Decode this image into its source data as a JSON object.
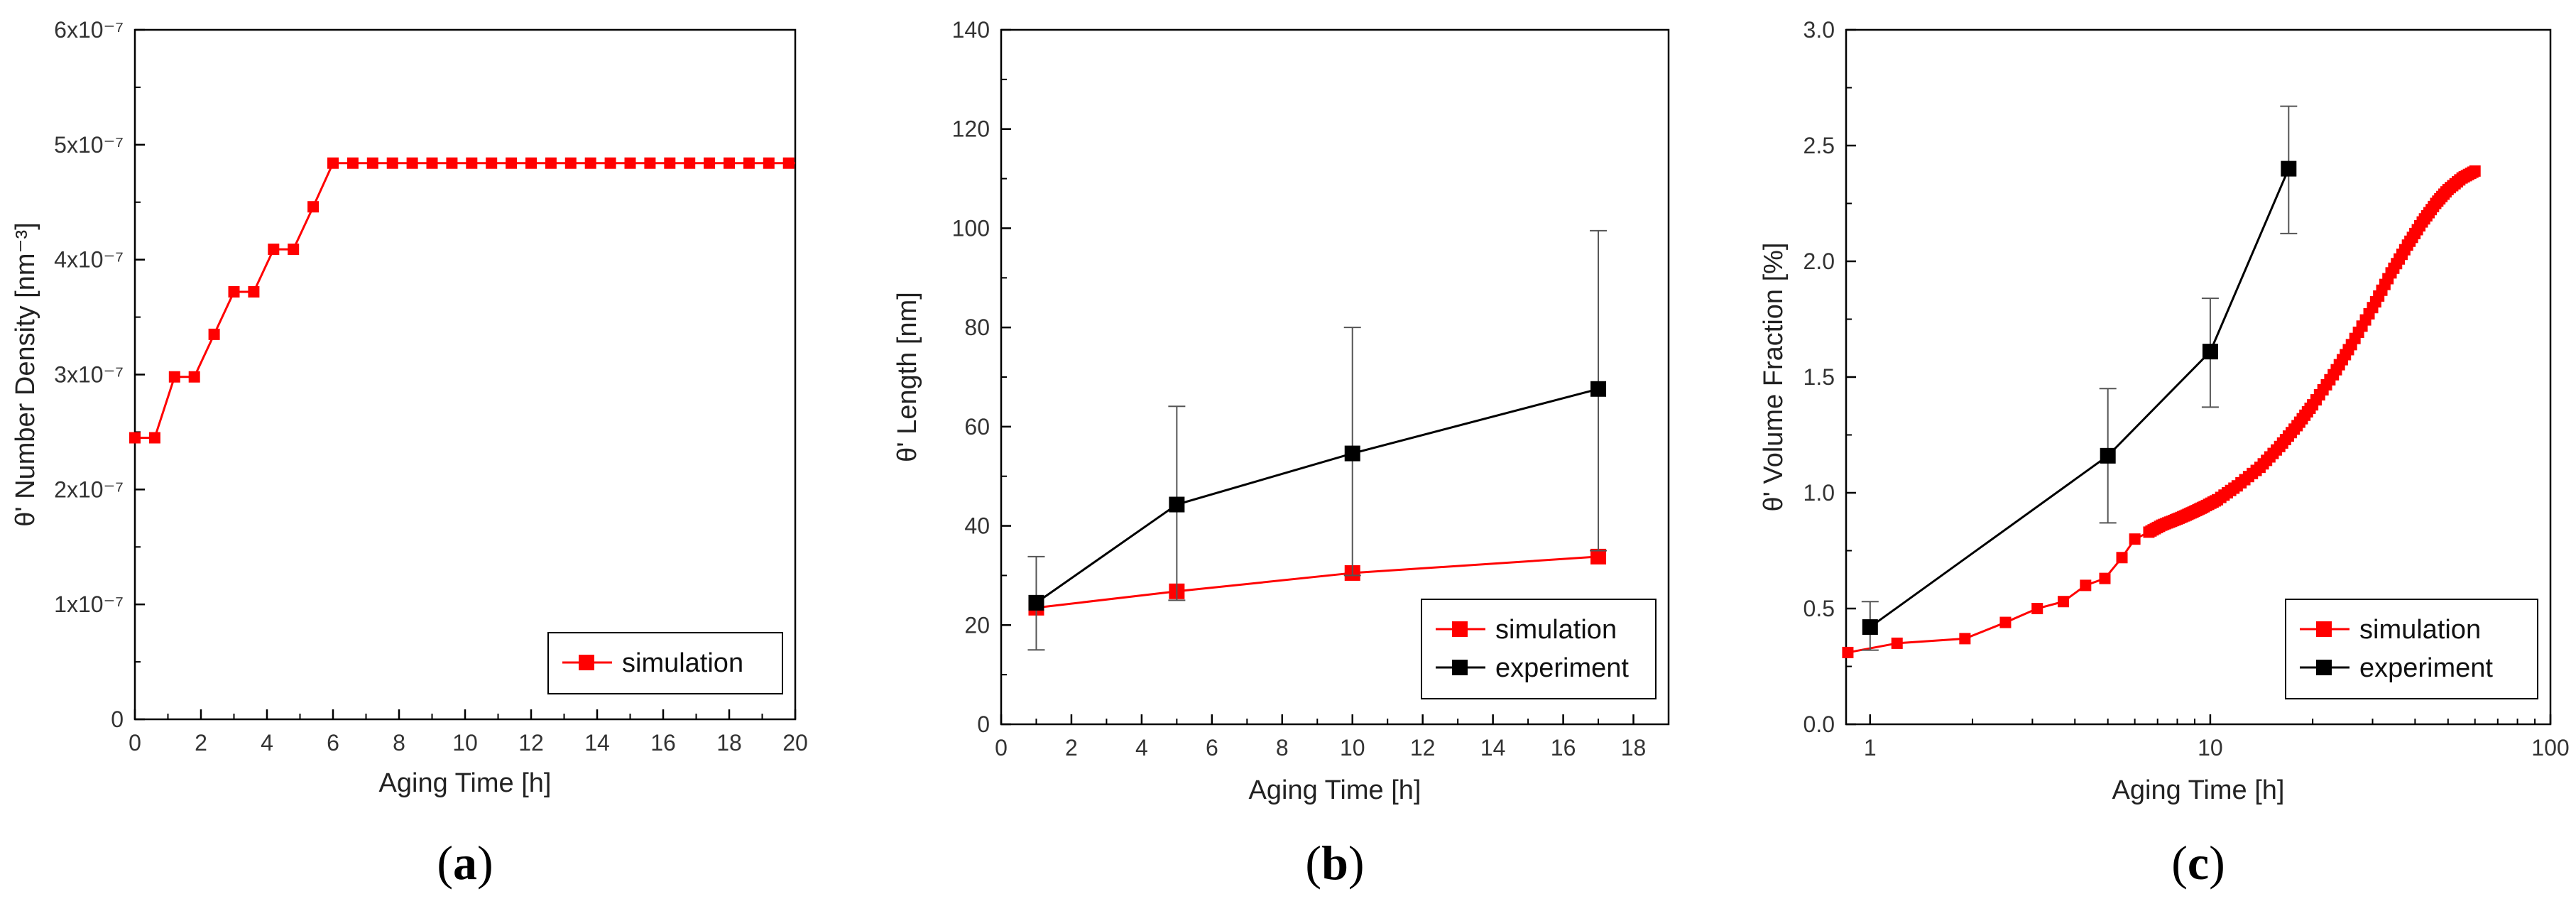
{
  "colors": {
    "simulation": "#ff0000",
    "experiment": "#000000",
    "axis": "#000000"
  },
  "chart_data": [
    {
      "id": "a",
      "panel_label": "a",
      "type": "line",
      "xscale": "linear",
      "xlabel": "Aging Time [h]",
      "ylabel": "θ' Number Density [nm⁻³]",
      "xlim": [
        0,
        20
      ],
      "ylim": [
        0,
        6e-07
      ],
      "xticks": [
        0,
        2,
        4,
        6,
        8,
        10,
        12,
        14,
        16,
        18,
        20
      ],
      "xtick_labels": [
        "0",
        "2",
        "4",
        "6",
        "8",
        "10",
        "12",
        "14",
        "16",
        "18",
        "20"
      ],
      "yticks": [
        0,
        1e-07,
        2e-07,
        3e-07,
        4e-07,
        5e-07,
        6e-07
      ],
      "ytick_labels": [
        "0",
        "1x10⁻⁷",
        "2x10⁻⁷",
        "3x10⁻⁷",
        "4x10⁻⁷",
        "5x10⁻⁷",
        "6x10⁻⁷"
      ],
      "legend_position": "bottom-right",
      "legend": [
        "simulation"
      ],
      "series": [
        {
          "name": "simulation",
          "color": "#ff0000",
          "marker": "square",
          "step": true,
          "x": [
            0,
            0.6,
            1.2,
            1.8,
            2.4,
            3.0,
            3.6,
            4.2,
            4.8,
            5.4,
            6.0,
            6.6,
            7.2,
            7.8,
            8.4,
            9.0,
            9.6,
            10.2,
            10.8,
            11.4,
            12.0,
            12.6,
            13.2,
            13.8,
            14.4,
            15.0,
            15.6,
            16.2,
            16.8,
            17.4,
            18.0,
            18.6,
            19.2,
            19.8
          ],
          "y": [
            2.45e-07,
            2.45e-07,
            2.98e-07,
            2.98e-07,
            3.35e-07,
            3.72e-07,
            3.72e-07,
            4.09e-07,
            4.09e-07,
            4.46e-07,
            4.84e-07,
            4.84e-07,
            4.84e-07,
            4.84e-07,
            4.84e-07,
            4.84e-07,
            4.84e-07,
            4.84e-07,
            4.84e-07,
            4.84e-07,
            4.84e-07,
            4.84e-07,
            4.84e-07,
            4.84e-07,
            4.84e-07,
            4.84e-07,
            4.84e-07,
            4.84e-07,
            4.84e-07,
            4.84e-07,
            4.84e-07,
            4.84e-07,
            4.84e-07,
            4.84e-07
          ]
        }
      ]
    },
    {
      "id": "b",
      "panel_label": "b",
      "type": "line",
      "xscale": "linear",
      "xlabel": "Aging Time [h]",
      "ylabel": "θ' Length [nm]",
      "xlim": [
        0,
        19
      ],
      "ylim": [
        0,
        140
      ],
      "xticks": [
        0,
        2,
        4,
        6,
        8,
        10,
        12,
        14,
        16,
        18
      ],
      "xtick_labels": [
        "0",
        "2",
        "4",
        "6",
        "8",
        "10",
        "12",
        "14",
        "16",
        "18"
      ],
      "yticks": [
        0,
        20,
        40,
        60,
        80,
        100,
        120,
        140
      ],
      "ytick_labels": [
        "0",
        "20",
        "40",
        "60",
        "80",
        "100",
        "120",
        "140"
      ],
      "legend_position": "bottom-right",
      "legend": [
        "simulation",
        "experiment"
      ],
      "series": [
        {
          "name": "simulation",
          "color": "#ff0000",
          "marker": "square",
          "x": [
            1,
            5,
            10,
            17
          ],
          "y": [
            23.5,
            26.8,
            30.5,
            33.8
          ]
        },
        {
          "name": "experiment",
          "color": "#000000",
          "marker": "square",
          "x": [
            1,
            5,
            10,
            17
          ],
          "y": [
            24.5,
            44.3,
            54.6,
            67.6
          ],
          "err_low": [
            15,
            25,
            30,
            35
          ],
          "err_high": [
            33.8,
            64.1,
            80.0,
            99.5
          ]
        }
      ]
    },
    {
      "id": "c",
      "panel_label": "c",
      "type": "line",
      "xscale": "log",
      "xlabel": "Aging Time [h]",
      "ylabel": "θ' Volume Fraction [%]",
      "xlim": [
        0.85,
        100
      ],
      "ylim": [
        0,
        3.0
      ],
      "xticks": [
        1,
        10,
        100
      ],
      "xtick_labels": [
        "1",
        "10",
        "100"
      ],
      "yticks": [
        0,
        0.5,
        1.0,
        1.5,
        2.0,
        2.5,
        3.0
      ],
      "ytick_labels": [
        "0.0",
        "0.5",
        "1.0",
        "1.5",
        "2.0",
        "2.5",
        "3.0"
      ],
      "legend_position": "bottom-right",
      "legend": [
        "simulation",
        "experiment"
      ],
      "series": [
        {
          "name": "simulation",
          "color": "#ff0000",
          "marker": "square",
          "dense": true,
          "x": [
            0.86,
            1.2,
            1.9,
            2.5,
            3.1,
            3.7,
            4.3,
            4.9,
            5.5,
            6.0,
            6.6,
            7.2,
            7.8,
            8.4,
            9.0,
            9.6,
            10.5,
            12,
            14,
            16,
            18,
            20,
            23,
            26,
            30,
            34,
            38,
            42,
            46,
            50,
            55,
            60
          ],
          "y": [
            0.31,
            0.35,
            0.37,
            0.44,
            0.5,
            0.53,
            0.6,
            0.63,
            0.72,
            0.8,
            0.83,
            0.86,
            0.88,
            0.9,
            0.92,
            0.94,
            0.97,
            1.03,
            1.11,
            1.2,
            1.29,
            1.38,
            1.51,
            1.64,
            1.8,
            1.95,
            2.07,
            2.17,
            2.25,
            2.31,
            2.36,
            2.39
          ]
        },
        {
          "name": "experiment",
          "color": "#000000",
          "marker": "square",
          "x": [
            1,
            5,
            10,
            17
          ],
          "y": [
            0.42,
            1.16,
            1.61,
            2.4
          ],
          "err_low": [
            0.32,
            0.87,
            1.37,
            2.12
          ],
          "err_high": [
            0.53,
            1.45,
            1.84,
            2.67
          ]
        }
      ]
    }
  ]
}
